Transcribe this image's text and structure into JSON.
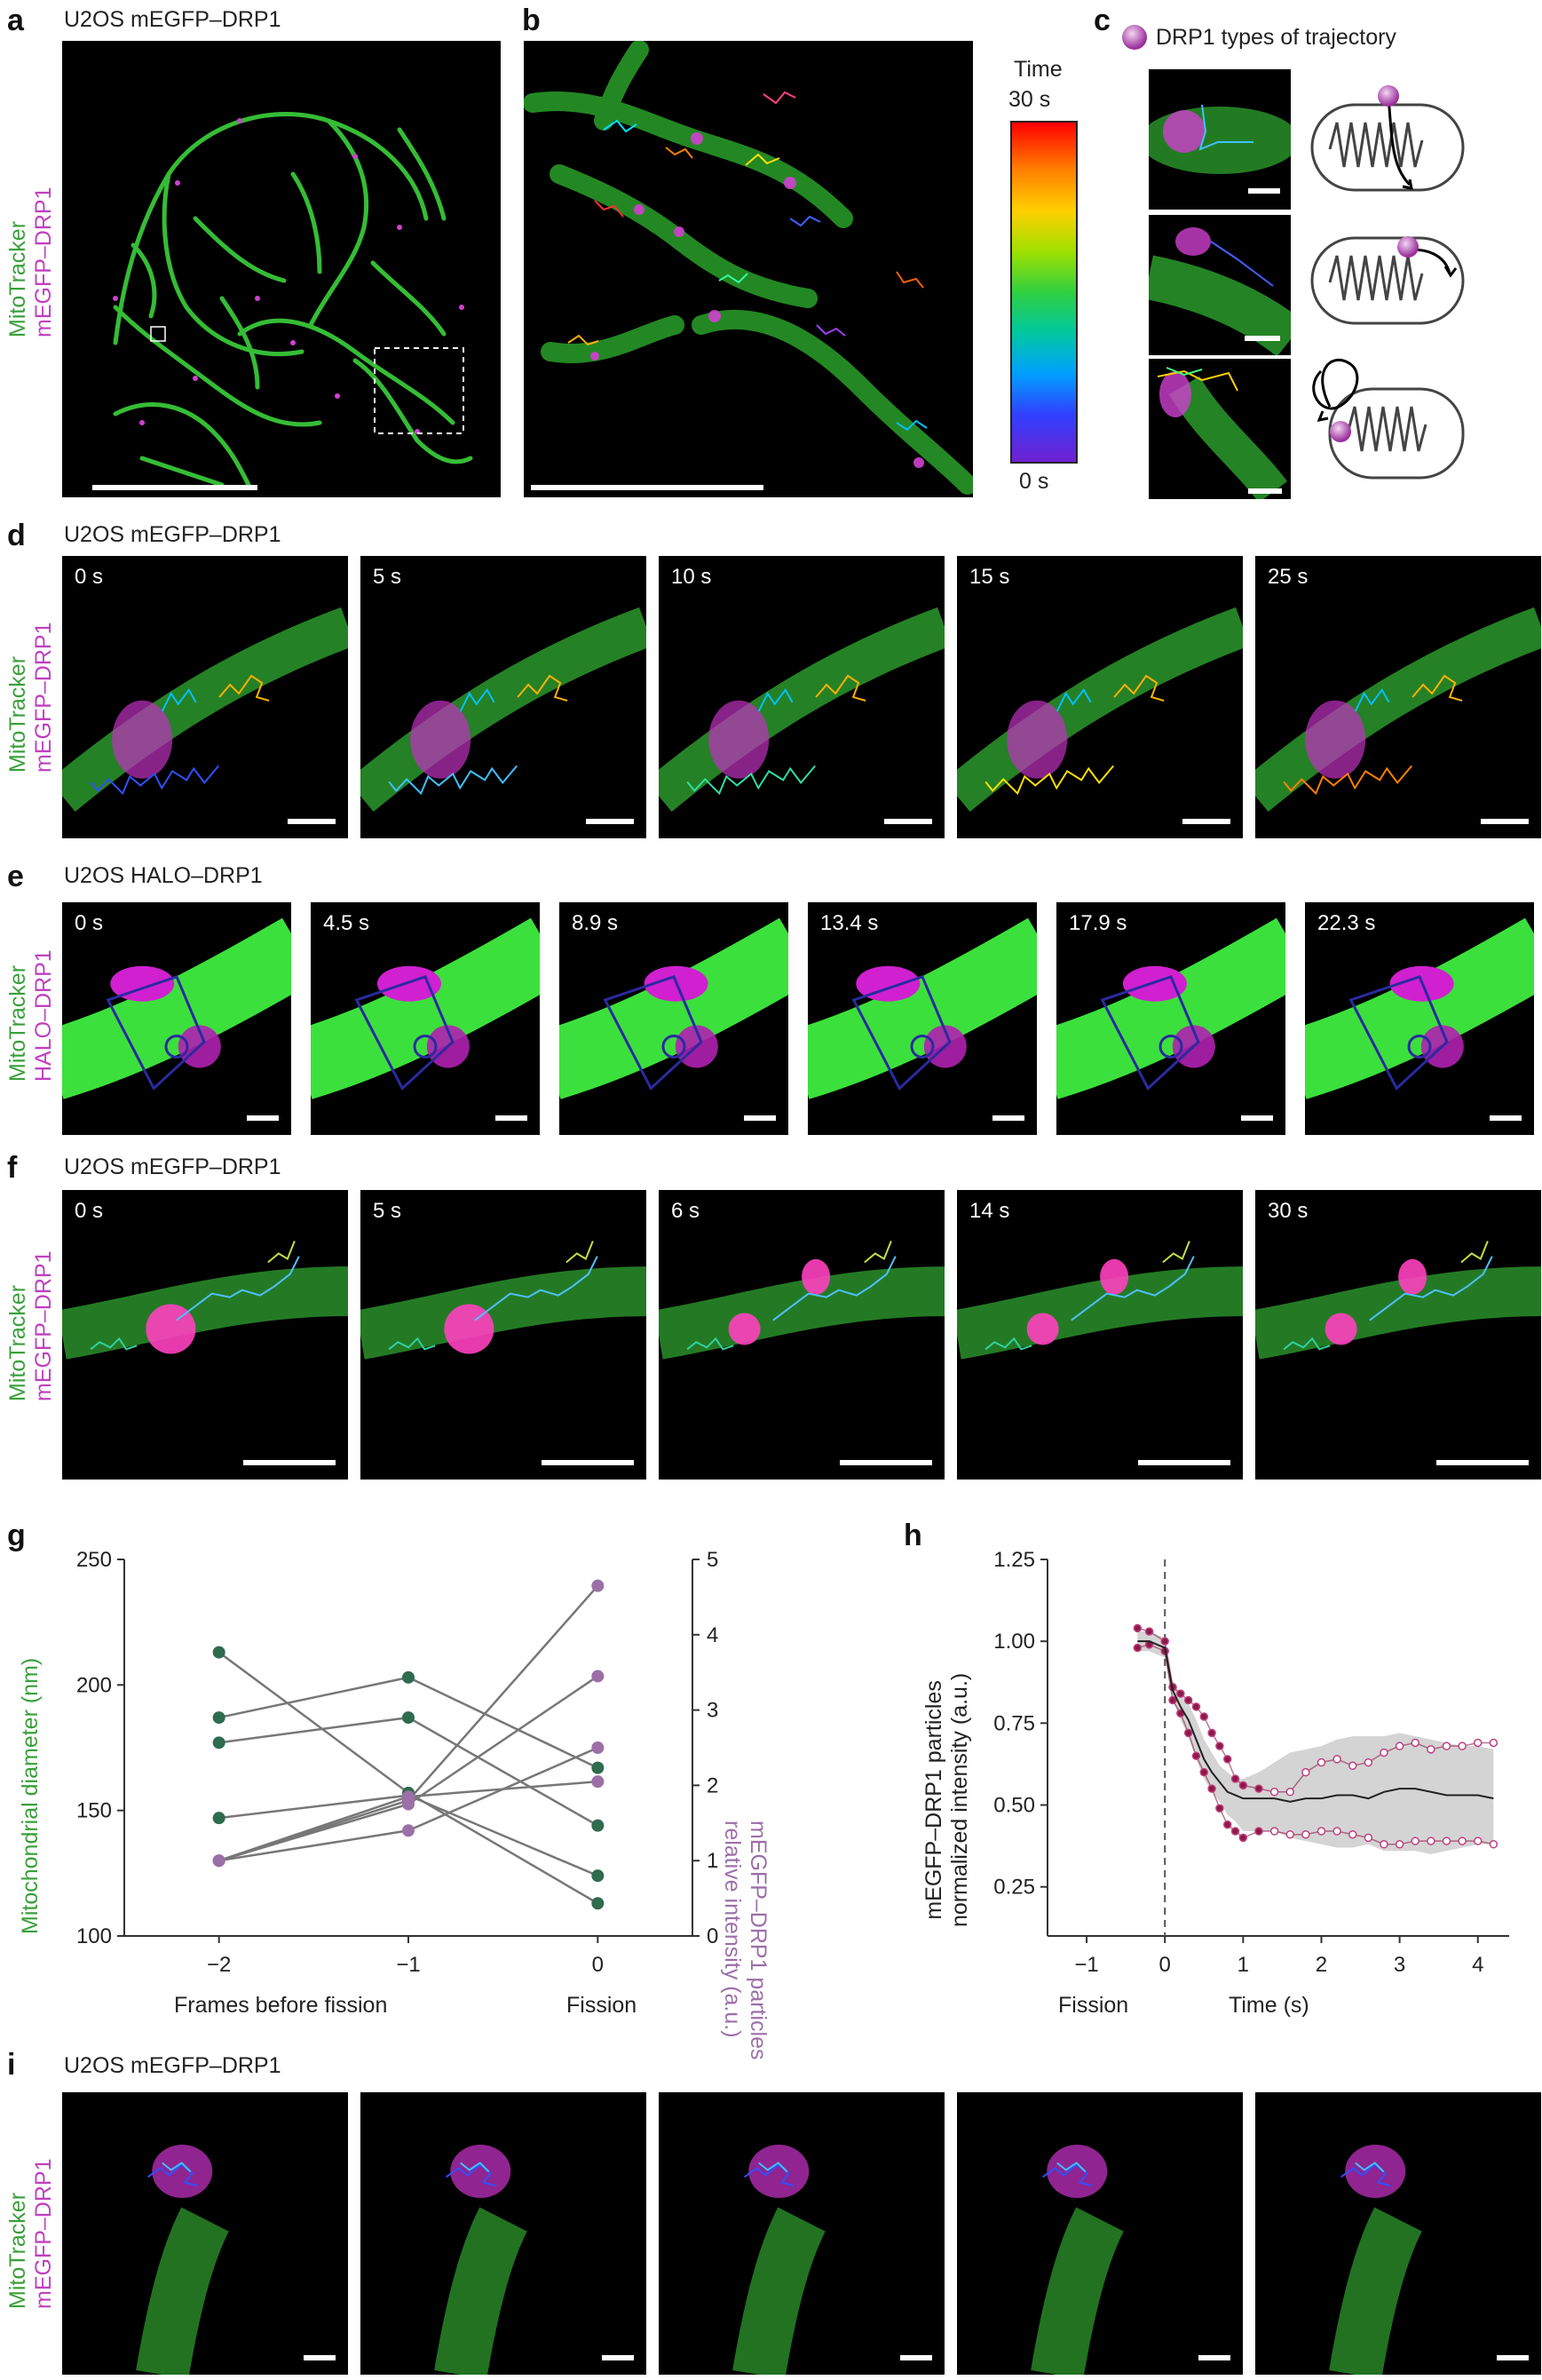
{
  "panels": {
    "a": {
      "letter": "a",
      "title": "U2OS mEGFP–DRP1",
      "ylab_green": "MitoTracker",
      "ylab_magenta": "mEGFP–DRP1"
    },
    "b": {
      "letter": "b",
      "colorbar_title": "Time",
      "colorbar_max": "30 s",
      "colorbar_min": "0 s"
    },
    "c": {
      "letter": "c",
      "title": "DRP1 types of trajectory"
    },
    "d": {
      "letter": "d",
      "title": "U2OS mEGFP–DRP1",
      "ylab_green": "MitoTracker",
      "ylab_magenta": "mEGFP–DRP1",
      "times": [
        "0 s",
        "5 s",
        "10 s",
        "15 s",
        "25 s"
      ]
    },
    "e": {
      "letter": "e",
      "title": "U2OS HALO–DRP1",
      "ylab_green": "MitoTracker",
      "ylab_magenta": "HALO–DRP1",
      "times": [
        "0 s",
        "4.5 s",
        "8.9 s",
        "13.4 s",
        "17.9 s",
        "22.3 s"
      ]
    },
    "f": {
      "letter": "f",
      "title": "U2OS mEGFP–DRP1",
      "ylab_green": "MitoTracker",
      "ylab_magenta": "mEGFP–DRP1",
      "times": [
        "0 s",
        "5 s",
        "6 s",
        "14 s",
        "30 s"
      ]
    },
    "g": {
      "letter": "g",
      "ylabel_left": "Mitochondrial diameter (nm)",
      "ylabel_right_1": "mEGFP–DRP1 particles",
      "ylabel_right_2": "relative intensity (a.u.)",
      "xlabel_left": "Frames before fission",
      "xlabel_right": "Fission",
      "left_ticks": [
        "250",
        "200",
        "150",
        "100"
      ],
      "right_ticks": [
        "5",
        "4",
        "3",
        "2",
        "1",
        "0"
      ],
      "x_ticks": [
        "−2",
        "−1",
        "0"
      ]
    },
    "h": {
      "letter": "h",
      "ylabel_1": "mEGFP–DRP1 particles",
      "ylabel_2": "normalized intensity (a.u.)",
      "xlabel_fission": "Fission",
      "xlabel_time": "Time (s)",
      "y_ticks": [
        "1.25",
        "1.00",
        "0.75",
        "0.50",
        "0.25"
      ],
      "x_ticks": [
        "−1",
        "0",
        "1",
        "2",
        "3",
        "4"
      ]
    },
    "i": {
      "letter": "i",
      "title": "U2OS mEGFP–DRP1",
      "ylab_green": "MitoTracker",
      "ylab_magenta": "mEGFP–DRP1"
    }
  },
  "colors": {
    "green": "#3a9f3a",
    "magenta": "#c040c0",
    "point_green": "#2e6b4f",
    "point_purple": "#9c6fa8",
    "line_gray": "#777777",
    "h_line": "#8b1a4a",
    "band": "#cccccc"
  },
  "chart_data": [
    {
      "type": "line",
      "panel": "g",
      "xlabel": "Frames before fission",
      "x": [
        -2,
        -1,
        0
      ],
      "ylabel_left": "Mitochondrial diameter (nm)",
      "ylim_left": [
        100,
        250
      ],
      "ylabel_right": "mEGFP–DRP1 particles relative intensity (a.u.)",
      "ylim_right": [
        0,
        5
      ],
      "series_diameter": [
        {
          "values": [
            213,
            157,
            113
          ]
        },
        {
          "values": [
            187,
            203,
            167
          ]
        },
        {
          "values": [
            177,
            187,
            144
          ]
        },
        {
          "values": [
            147,
            156,
            124
          ]
        }
      ],
      "series_intensity": [
        {
          "values": [
            1.0,
            1.8,
            4.65
          ]
        },
        {
          "values": [
            1.0,
            1.75,
            3.45
          ]
        },
        {
          "values": [
            1.0,
            1.4,
            2.5
          ]
        },
        {
          "values": [
            1.0,
            1.85,
            2.05
          ]
        }
      ]
    },
    {
      "type": "line",
      "panel": "h",
      "xlabel": "Time (s)",
      "ylabel": "mEGFP–DRP1 particles normalized intensity (a.u.)",
      "xlim": [
        -1.5,
        4.4
      ],
      "ylim": [
        0.1,
        1.25
      ],
      "fission_x": 0,
      "mean_x": [
        -0.35,
        -0.2,
        0,
        0.1,
        0.2,
        0.3,
        0.4,
        0.5,
        0.6,
        0.7,
        0.8,
        0.9,
        1.0,
        1.2,
        1.4,
        1.6,
        1.8,
        2.0,
        2.2,
        2.4,
        2.6,
        2.8,
        3.0,
        3.2,
        3.4,
        3.6,
        3.8,
        4.0,
        4.2
      ],
      "mean_y": [
        1.0,
        1.0,
        0.98,
        0.85,
        0.8,
        0.76,
        0.7,
        0.64,
        0.6,
        0.57,
        0.54,
        0.53,
        0.52,
        0.52,
        0.52,
        0.51,
        0.52,
        0.52,
        0.53,
        0.53,
        0.52,
        0.54,
        0.55,
        0.55,
        0.54,
        0.53,
        0.53,
        0.53,
        0.52
      ],
      "band_upper": [
        1.03,
        1.03,
        1.01,
        0.88,
        0.84,
        0.81,
        0.76,
        0.7,
        0.66,
        0.62,
        0.6,
        0.58,
        0.58,
        0.6,
        0.63,
        0.66,
        0.67,
        0.68,
        0.7,
        0.71,
        0.71,
        0.71,
        0.72,
        0.71,
        0.7,
        0.69,
        0.68,
        0.68,
        0.67
      ],
      "band_lower": [
        0.97,
        0.97,
        0.95,
        0.82,
        0.76,
        0.71,
        0.64,
        0.58,
        0.54,
        0.51,
        0.47,
        0.45,
        0.42,
        0.42,
        0.42,
        0.4,
        0.39,
        0.38,
        0.37,
        0.37,
        0.38,
        0.36,
        0.36,
        0.36,
        0.35,
        0.36,
        0.37,
        0.38,
        0.38
      ],
      "upper_trace_y": [
        1.04,
        1.03,
        1.0,
        0.86,
        0.84,
        0.82,
        0.8,
        0.77,
        0.72,
        0.68,
        0.64,
        0.58,
        0.56,
        0.55,
        0.54,
        0.54,
        0.6,
        0.63,
        0.64,
        0.62,
        0.63,
        0.66,
        0.68,
        0.69,
        0.67,
        0.68,
        0.68,
        0.69,
        0.69
      ],
      "lower_trace_y": [
        0.98,
        0.99,
        0.97,
        0.82,
        0.78,
        0.72,
        0.65,
        0.6,
        0.55,
        0.49,
        0.44,
        0.42,
        0.4,
        0.42,
        0.42,
        0.41,
        0.41,
        0.42,
        0.42,
        0.41,
        0.4,
        0.38,
        0.38,
        0.39,
        0.39,
        0.39,
        0.39,
        0.39,
        0.38
      ],
      "filled_points_until": 1.2
    }
  ]
}
